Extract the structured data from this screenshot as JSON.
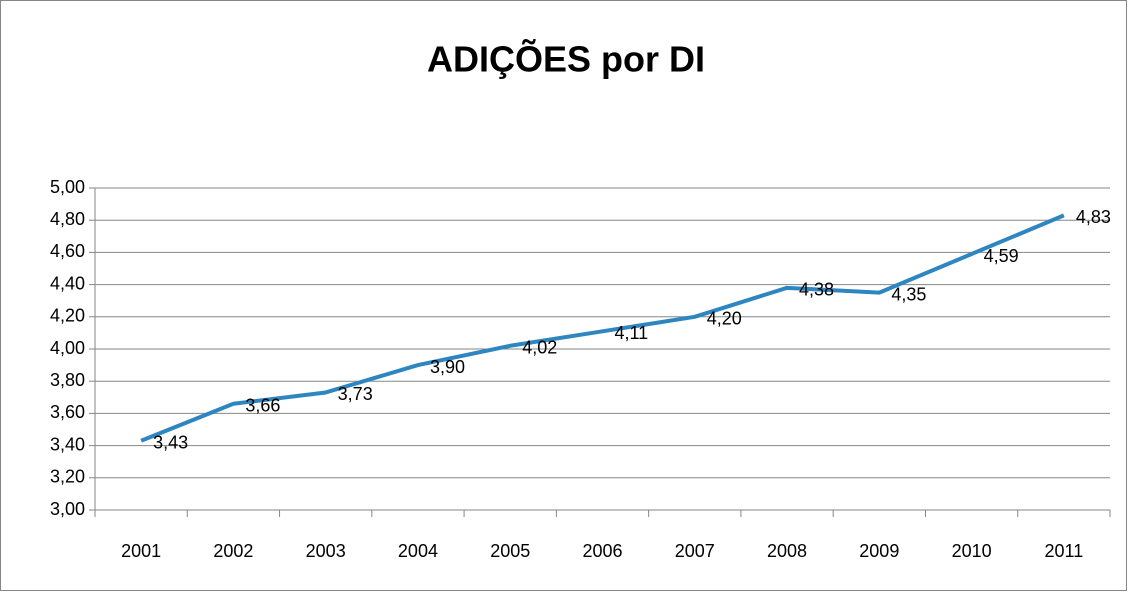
{
  "chart_data": {
    "type": "line",
    "title": "ADIÇÕES por DI",
    "categories": [
      "2001",
      "2002",
      "2003",
      "2004",
      "2005",
      "2006",
      "2007",
      "2008",
      "2009",
      "2010",
      "2011"
    ],
    "series": [
      {
        "name": "ADIÇÕES por DI",
        "color": "#2e86c1",
        "values": [
          3.43,
          3.66,
          3.73,
          3.9,
          4.02,
          4.11,
          4.2,
          4.38,
          4.35,
          4.59,
          4.83
        ],
        "value_labels": [
          "3,43",
          "3,66",
          "3,73",
          "3,90",
          "4,02",
          "4,11",
          "4,20",
          "4,38",
          "4,35",
          "4,59",
          "4,83"
        ]
      }
    ],
    "ylim": [
      3,
      5
    ],
    "yticks": [
      {
        "value": 3,
        "label": "3,00"
      },
      {
        "value": 3.2,
        "label": "3,20"
      },
      {
        "value": 3.4,
        "label": "3,40"
      },
      {
        "value": 3.6,
        "label": "3,60"
      },
      {
        "value": 3.8,
        "label": "3,80"
      },
      {
        "value": 4,
        "label": "4,00"
      },
      {
        "value": 4.2,
        "label": "4,20"
      },
      {
        "value": 4.4,
        "label": "4,40"
      },
      {
        "value": 4.6,
        "label": "4,60"
      },
      {
        "value": 4.8,
        "label": "4,80"
      },
      {
        "value": 5,
        "label": "5,00"
      }
    ],
    "grid": true
  }
}
